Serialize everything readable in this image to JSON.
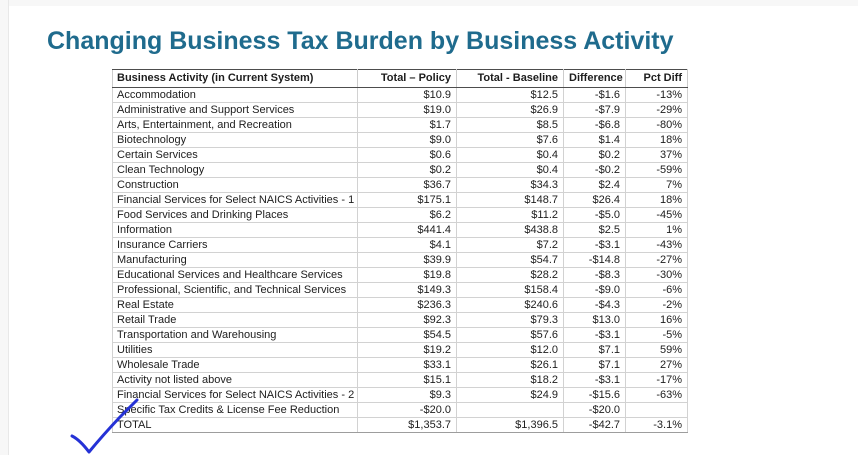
{
  "title": "Changing Business Tax Burden by Business Activity",
  "colors": {
    "title_teal": "#1f6b8d",
    "annotation_ink_blue": "#2532d6",
    "grid_line": "#d2d2d2",
    "header_border": "#4d4d4d"
  },
  "annotation": {
    "type": "hand-drawn-checkmark",
    "color": "#2532d6"
  },
  "table": {
    "columns": [
      "Business Activity (in Current System)",
      "Total – Policy",
      "Total - Baseline",
      "Difference",
      "Pct Diff"
    ],
    "rows": [
      [
        "Accommodation",
        "$10.9",
        "$12.5",
        "-$1.6",
        "-13%"
      ],
      [
        "Administrative and Support Services",
        "$19.0",
        "$26.9",
        "-$7.9",
        "-29%"
      ],
      [
        "Arts, Entertainment, and Recreation",
        "$1.7",
        "$8.5",
        "-$6.8",
        "-80%"
      ],
      [
        "Biotechnology",
        "$9.0",
        "$7.6",
        "$1.4",
        "18%"
      ],
      [
        "Certain Services",
        "$0.6",
        "$0.4",
        "$0.2",
        "37%"
      ],
      [
        "Clean Technology",
        "$0.2",
        "$0.4",
        "-$0.2",
        "-59%"
      ],
      [
        "Construction",
        "$36.7",
        "$34.3",
        "$2.4",
        "7%"
      ],
      [
        "Financial Services for Select NAICS Activities - 1",
        "$175.1",
        "$148.7",
        "$26.4",
        "18%"
      ],
      [
        "Food Services and Drinking Places",
        "$6.2",
        "$11.2",
        "-$5.0",
        "-45%"
      ],
      [
        "Information",
        "$441.4",
        "$438.8",
        "$2.5",
        "1%"
      ],
      [
        "Insurance Carriers",
        "$4.1",
        "$7.2",
        "-$3.1",
        "-43%"
      ],
      [
        "Manufacturing",
        "$39.9",
        "$54.7",
        "-$14.8",
        "-27%"
      ],
      [
        "Educational Services and Healthcare Services",
        "$19.8",
        "$28.2",
        "-$8.3",
        "-30%"
      ],
      [
        "Professional, Scientific, and Technical Services",
        "$149.3",
        "$158.4",
        "-$9.0",
        "-6%"
      ],
      [
        "Real Estate",
        "$236.3",
        "$240.6",
        "-$4.3",
        "-2%"
      ],
      [
        "Retail Trade",
        "$92.3",
        "$79.3",
        "$13.0",
        "16%"
      ],
      [
        "Transportation and Warehousing",
        "$54.5",
        "$57.6",
        "-$3.1",
        "-5%"
      ],
      [
        "Utilities",
        "$19.2",
        "$12.0",
        "$7.1",
        "59%"
      ],
      [
        "Wholesale Trade",
        "$33.1",
        "$26.1",
        "$7.1",
        "27%"
      ],
      [
        "Activity not listed above",
        "$15.1",
        "$18.2",
        "-$3.1",
        "-17%"
      ],
      [
        "Financial Services for Select NAICS Activities - 2",
        "$9.3",
        "$24.9",
        "-$15.6",
        "-63%"
      ],
      [
        "Specific Tax Credits & License Fee Reduction",
        "-$20.0",
        "",
        "-$20.0",
        ""
      ],
      [
        "TOTAL",
        "$1,353.7",
        "$1,396.5",
        "-$42.7",
        "-3.1%"
      ]
    ]
  }
}
